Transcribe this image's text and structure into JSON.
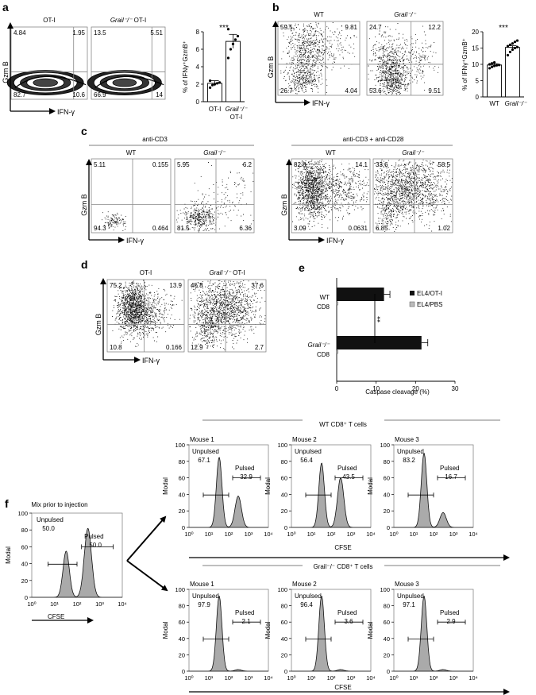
{
  "figure": {
    "panel_a": {
      "letter": "a",
      "plots": [
        {
          "title": "OT-I",
          "title_italic": "",
          "q_ul": "4.84",
          "q_ur": "1.95",
          "q_ll": "82.7",
          "q_lr": "10.6"
        },
        {
          "title": " OT-I",
          "title_italic": "Grail⁻/⁻",
          "q_ul": "13.5",
          "q_ur": "5.51",
          "q_ll": "66.9",
          "q_lr": "14"
        }
      ],
      "ylabel": "Gzm B",
      "xlabel": "IFN-γ",
      "bar_ylabel": "% of IFNγ⁺GzmB⁺",
      "bar_sig": "***",
      "bar_cat1": "OT-I",
      "bar_cat2_italic": "Grail⁻/⁻",
      "bar_cat2_line2": "OT-I",
      "bar_ticks": [
        "0",
        "2",
        "4",
        "6",
        "8"
      ]
    },
    "panel_b": {
      "letter": "b",
      "plots": [
        {
          "title": "WT",
          "title_italic": "",
          "q_ul": "59.5",
          "q_ur": "9.81",
          "q_ll": "26.7",
          "q_lr": "4.04"
        },
        {
          "title": "",
          "title_italic": "Grail⁻/⁻",
          "q_ul": "24.7",
          "q_ur": "12.2",
          "q_ll": "53.6",
          "q_lr": "9.51"
        }
      ],
      "ylabel": "Gzm B",
      "xlabel": "IFN-γ",
      "bar_ylabel": "% of IFNγ⁺GzmB⁺",
      "bar_sig": "***",
      "bar_cat1": "WT",
      "bar_cat2_italic": "Grail⁻/⁻",
      "bar_ticks": [
        "0",
        "5",
        "10",
        "15",
        "20"
      ]
    },
    "panel_c": {
      "letter": "c",
      "group1": "anti-CD3",
      "group2": "anti-CD3 + anti-CD28",
      "plots": [
        {
          "title": "WT",
          "title_italic": "",
          "q_ul": "5.11",
          "q_ur": "0.155",
          "q_ll": "94.3",
          "q_lr": "0.464"
        },
        {
          "title": "",
          "title_italic": "Grail⁻/⁻",
          "q_ul": "5.95",
          "q_ur": "6.2",
          "q_ll": "81.5",
          "q_lr": "6.36"
        },
        {
          "title": "WT",
          "title_italic": "",
          "q_ul": "82.8",
          "q_ur": "14.1",
          "q_ll": "3.09",
          "q_lr": "0.0631"
        },
        {
          "title": "",
          "title_italic": "Grail⁻/⁻",
          "q_ul": "33.6",
          "q_ur": "58.5",
          "q_ll": "6.85",
          "q_lr": "1.02"
        }
      ],
      "ylabel": "Gzm B",
      "xlabel": "IFN-γ"
    },
    "panel_d": {
      "letter": "d",
      "plots": [
        {
          "title": "OT-I",
          "title_italic": "",
          "q_ul": "75.2",
          "q_ur": "13.9",
          "q_ll": "10.8",
          "q_lr": "0.166"
        },
        {
          "title": " OT-I",
          "title_italic": "Grail⁻/⁻",
          "q_ul": "46.8",
          "q_ur": "37.6",
          "q_ll": "12.9",
          "q_lr": "2.7"
        }
      ],
      "ylabel": "Gzm B",
      "xlabel": "IFN-γ"
    },
    "panel_e": {
      "letter": "e",
      "legend1": "EL4/OT-I",
      "legend2": "EL4/PBS",
      "cat1_line1": "WT",
      "cat1_line2": "CD8",
      "cat2_line1_italic": "Grail⁻/⁻",
      "cat2_line2": "CD8",
      "xlabel": "Caspase cleavage (%)",
      "xticks": [
        "0",
        "10",
        "20",
        "30"
      ],
      "sig": "**"
    },
    "panel_f": {
      "letter": "f",
      "mix_title": "Mix prior to injection",
      "wt_header": "WT CD8⁺ T cells",
      "ko_header": "Grail⁻/⁻ CD8⁺ T cells",
      "ylabel": "Modal",
      "xlabel": "CFSE",
      "unpulsed_label": "Unpulsed",
      "pulsed_label": "Pulsed",
      "yticks": [
        "0",
        "20",
        "40",
        "60",
        "80",
        "100"
      ],
      "mix": {
        "unpulsed": "50.0",
        "pulsed": "50.0"
      },
      "wt": [
        {
          "title": "Mouse 1",
          "unpulsed": "67.1",
          "pulsed": "32.9"
        },
        {
          "title": "Mouse 2",
          "unpulsed": "56.4",
          "pulsed": "43.5"
        },
        {
          "title": "Mouse 3",
          "unpulsed": "83.2",
          "pulsed": "16.7"
        }
      ],
      "ko": [
        {
          "title": "Mouse 1",
          "unpulsed": "97.9",
          "pulsed": "2.1"
        },
        {
          "title": "Mouse 2",
          "unpulsed": "96.4",
          "pulsed": "3.6"
        },
        {
          "title": "Mouse 3",
          "unpulsed": "97.1",
          "pulsed": "2.9"
        }
      ]
    }
  },
  "chart_data": [
    {
      "type": "bar",
      "panel": "a",
      "categories": [
        "OT-I",
        "Grail⁻/⁻ OT-I"
      ],
      "values": [
        2.1,
        6.9
      ],
      "errors": [
        0.3,
        0.8
      ],
      "ylabel": "% of IFNγ⁺GzmB⁺",
      "ylim": [
        0,
        8
      ],
      "points": [
        [
          1.6,
          1.9,
          2.0,
          2.1,
          2.2,
          2.4
        ],
        [
          5.0,
          6.0,
          6.6,
          7.1,
          7.5,
          8.3
        ]
      ]
    },
    {
      "type": "bar",
      "panel": "b",
      "categories": [
        "WT",
        "Grail⁻/⁻"
      ],
      "values": [
        9.8,
        15.2
      ],
      "errors": [
        0.4,
        0.5
      ],
      "ylabel": "% of IFNγ⁺GzmB⁺",
      "ylim": [
        0,
        20
      ],
      "points": [
        [
          8.8,
          9.2,
          9.5,
          9.7,
          9.8,
          10.0,
          10.3,
          10.6
        ],
        [
          12.8,
          13.8,
          14.5,
          15.0,
          15.3,
          15.6,
          16.0,
          16.4,
          16.9,
          17.3
        ]
      ]
    },
    {
      "type": "bar",
      "panel": "e",
      "orientation": "horizontal",
      "categories": [
        "WT CD8",
        "Grail⁻/⁻ CD8"
      ],
      "series": [
        {
          "name": "EL4/OT-I",
          "values": [
            12,
            21.5
          ],
          "errors": [
            1.5,
            1.6
          ]
        },
        {
          "name": "EL4/PBS",
          "values": [
            0.2,
            0.2
          ]
        }
      ],
      "xlabel": "Caspase cleavage (%)",
      "xlim": [
        0,
        30
      ]
    }
  ]
}
